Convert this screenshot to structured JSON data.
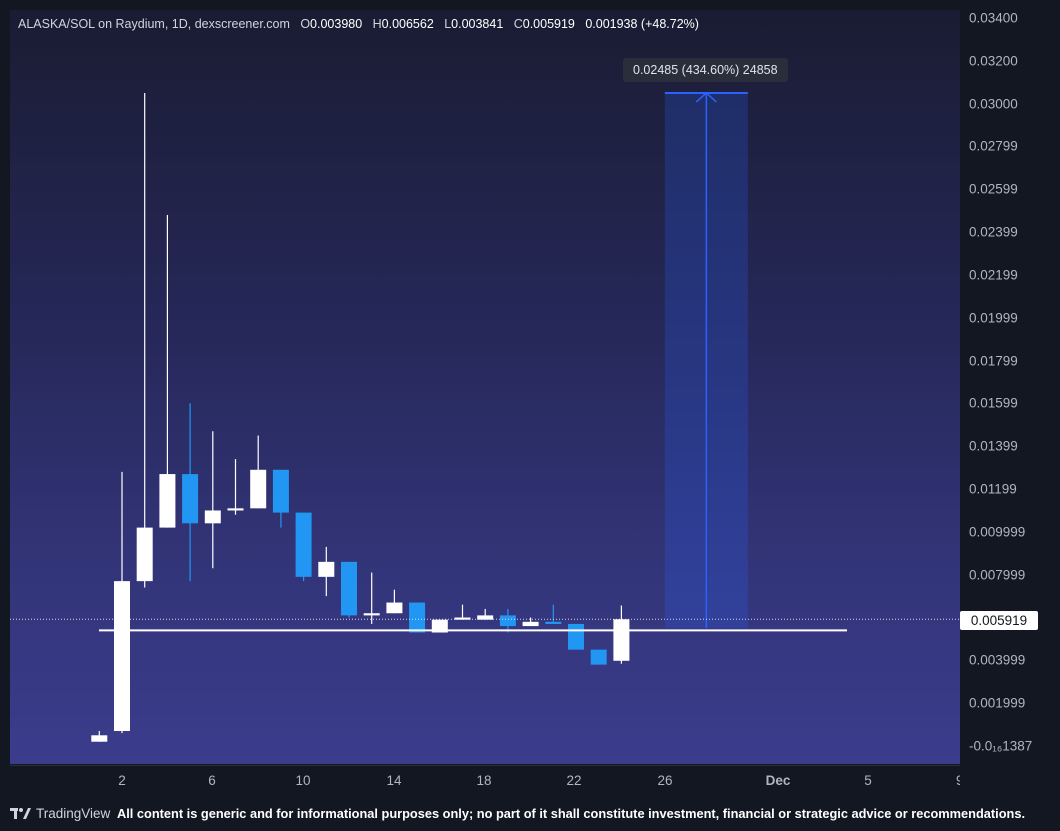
{
  "header": {
    "symbol": "ALASKA/SOL on Raydium, 1D, dexscreener.com",
    "o_label": "O",
    "o_value": "0.003980",
    "h_label": "H",
    "h_value": "0.006562",
    "l_label": "L",
    "l_value": "0.003841",
    "c_label": "C",
    "c_value": "0.005919",
    "change": "0.001938 (+48.72%)"
  },
  "price_axis": {
    "ticks": [
      "0.03400",
      "0.03200",
      "0.03000",
      "0.02799",
      "0.02599",
      "0.02399",
      "0.02199",
      "0.01999",
      "0.01799",
      "0.01599",
      "0.01399",
      "0.01199",
      "0.009999",
      "0.007999",
      "0.005999",
      "0.003999",
      "0.001999",
      "-0.0₁₆1387"
    ],
    "current_price_label": "0.005919"
  },
  "time_axis": {
    "ticks": [
      "2",
      "6",
      "10",
      "14",
      "18",
      "22",
      "26",
      "Dec",
      "5",
      "9"
    ]
  },
  "measure_tool": {
    "label": "0.02485 (434.60%) 24858"
  },
  "footer": {
    "brand": "TradingView",
    "disclaimer": "All content is generic and for informational purposes only; no part of it shall constitute investment, financial or strategic advice or recommendations."
  },
  "colors": {
    "up_candle": "#ffffff",
    "down_candle": "#2196f3",
    "measure_line": "#2962ff",
    "price_line": "#ffffff"
  },
  "chart_data": {
    "type": "candlestick",
    "title": "ALASKA/SOL on Raydium, 1D, dexscreener.com",
    "interval": "1D",
    "ylim": [
      -0.0005,
      0.0345
    ],
    "current_price": 0.005919,
    "horizontal_line": 0.0054,
    "candles": [
      {
        "day": 1,
        "o": 0.0002,
        "h": 0.0007,
        "l": 0.0002,
        "c": 0.0005,
        "dir": "up"
      },
      {
        "day": 2,
        "o": 0.0007,
        "h": 0.0128,
        "l": 0.0006,
        "c": 0.0077,
        "dir": "up"
      },
      {
        "day": 3,
        "o": 0.0077,
        "h": 0.0305,
        "l": 0.0074,
        "c": 0.0102,
        "dir": "up"
      },
      {
        "day": 4,
        "o": 0.0102,
        "h": 0.0248,
        "l": 0.0102,
        "c": 0.0127,
        "dir": "up"
      },
      {
        "day": 5,
        "o": 0.0127,
        "h": 0.016,
        "l": 0.0077,
        "c": 0.0104,
        "dir": "down"
      },
      {
        "day": 6,
        "o": 0.0104,
        "h": 0.0147,
        "l": 0.0083,
        "c": 0.011,
        "dir": "up"
      },
      {
        "day": 7,
        "o": 0.011,
        "h": 0.0134,
        "l": 0.0108,
        "c": 0.0111,
        "dir": "up"
      },
      {
        "day": 8,
        "o": 0.0111,
        "h": 0.0145,
        "l": 0.0111,
        "c": 0.0129,
        "dir": "up"
      },
      {
        "day": 9,
        "o": 0.0129,
        "h": 0.0129,
        "l": 0.0102,
        "c": 0.0109,
        "dir": "down"
      },
      {
        "day": 10,
        "o": 0.0109,
        "h": 0.0109,
        "l": 0.0077,
        "c": 0.0079,
        "dir": "down"
      },
      {
        "day": 11,
        "o": 0.0079,
        "h": 0.0093,
        "l": 0.007,
        "c": 0.0086,
        "dir": "up"
      },
      {
        "day": 12,
        "o": 0.0086,
        "h": 0.0086,
        "l": 0.006,
        "c": 0.0061,
        "dir": "down"
      },
      {
        "day": 13,
        "o": 0.0061,
        "h": 0.0081,
        "l": 0.0057,
        "c": 0.0062,
        "dir": "up"
      },
      {
        "day": 14,
        "o": 0.0062,
        "h": 0.0073,
        "l": 0.0062,
        "c": 0.0067,
        "dir": "up"
      },
      {
        "day": 15,
        "o": 0.0067,
        "h": 0.0067,
        "l": 0.0053,
        "c": 0.0053,
        "dir": "down"
      },
      {
        "day": 16,
        "o": 0.0053,
        "h": 0.0059,
        "l": 0.0053,
        "c": 0.0059,
        "dir": "up"
      },
      {
        "day": 17,
        "o": 0.0059,
        "h": 0.0066,
        "l": 0.0059,
        "c": 0.006,
        "dir": "up"
      },
      {
        "day": 18,
        "o": 0.0059,
        "h": 0.0064,
        "l": 0.0059,
        "c": 0.0061,
        "dir": "up"
      },
      {
        "day": 19,
        "o": 0.0061,
        "h": 0.0064,
        "l": 0.0053,
        "c": 0.0056,
        "dir": "down"
      },
      {
        "day": 20,
        "o": 0.0056,
        "h": 0.006,
        "l": 0.0056,
        "c": 0.0058,
        "dir": "up"
      },
      {
        "day": 21,
        "o": 0.0058,
        "h": 0.0066,
        "l": 0.0057,
        "c": 0.0057,
        "dir": "down"
      },
      {
        "day": 22,
        "o": 0.0057,
        "h": 0.0057,
        "l": 0.0045,
        "c": 0.0045,
        "dir": "down"
      },
      {
        "day": 23,
        "o": 0.0045,
        "h": 0.0045,
        "l": 0.0038,
        "c": 0.0038,
        "dir": "down"
      },
      {
        "day": 24,
        "o": 0.00398,
        "h": 0.006562,
        "l": 0.003841,
        "c": 0.005919,
        "dir": "up"
      }
    ],
    "measure": {
      "from_day": 26,
      "to_day": 29,
      "from_price": 0.0055,
      "to_price": 0.0305,
      "change": 0.02485,
      "percent": 434.6,
      "bars": 24858
    }
  }
}
